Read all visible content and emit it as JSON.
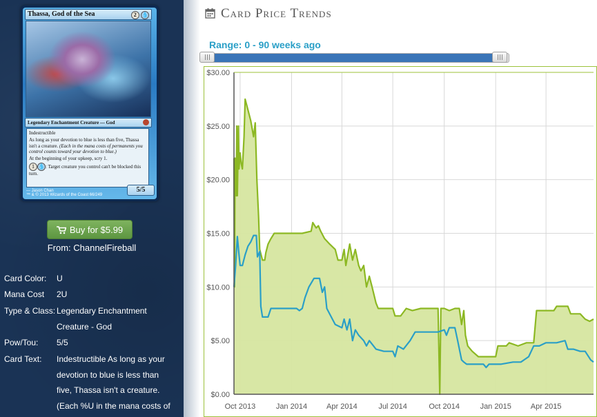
{
  "card": {
    "title": "Thassa, God of the Sea",
    "mana_generic": "2",
    "mana_color": "U",
    "type_line": "Legendary Enchantment Creature — God",
    "rules": [
      "Indestructible",
      "As long as your devotion to blue is less than five, Thassa isn't a creature.",
      "(Each in the mana costs of permanents you control counts toward your devotion to blue.)",
      "At the beginning of your upkeep, scry 1.",
      ": Target creature you control can't be blocked this turn."
    ],
    "activation_cost": "1",
    "power_toughness": "5/5",
    "artist": "Jason Chan",
    "copyright": "™ & © 2013 Wizards of the Coast 66/249"
  },
  "buy": {
    "label": "Buy for $5.99",
    "from": "From: ChannelFireball"
  },
  "attributes": [
    {
      "label": "Card Color:",
      "value": "U"
    },
    {
      "label": "Mana Cost",
      "value": "2U"
    },
    {
      "label": "Type & Class:",
      "value": "Legendary Enchantment Creature - God"
    },
    {
      "label": "Pow/Tou:",
      "value": "5/5"
    },
    {
      "label": "Card Text:",
      "value": "Indestructible As long as your devotion to blue is less than five, Thassa isn't a creature. (Each %U in the mana costs of"
    }
  ],
  "section": {
    "title": "Card Price Trends",
    "icon": "calendar-icon"
  },
  "range": {
    "label": "Range: 0 - 90 weeks ago",
    "min": 0,
    "max": 90
  },
  "colors": {
    "sidebar": "#1a3355",
    "buy_button": "#6aa34c",
    "accent_text": "#2a9fc7",
    "range_fill": "#3a75b8",
    "series_paper": "#8cb823",
    "series_paper_fill": "#d6e6a0",
    "series_foil": "#2a9fc7",
    "grid": "#d8d8d8"
  },
  "chart_data": {
    "type": "line",
    "title": "",
    "xlabel": "",
    "ylabel": "",
    "ylim": [
      0,
      30
    ],
    "xlim": [
      "2013-09-20",
      "2015-06-25"
    ],
    "grid": true,
    "legend": "none",
    "y_ticks": [
      "$0.00",
      "$5.00",
      "$10.00",
      "$15.00",
      "$20.00",
      "$25.00",
      "$30.00"
    ],
    "x_ticks": [
      {
        "label": "Oct 2013",
        "date": "2013-10-01"
      },
      {
        "label": "Jan 2014",
        "date": "2014-01-01"
      },
      {
        "label": "Apr 2014",
        "date": "2014-04-01"
      },
      {
        "label": "Jul 2014",
        "date": "2014-07-01"
      },
      {
        "label": "Oct 2014",
        "date": "2014-10-01"
      },
      {
        "label": "Jan 2015",
        "date": "2015-01-01"
      },
      {
        "label": "Apr 2015",
        "date": "2015-04-01"
      }
    ],
    "series": [
      {
        "color": "#8cb823",
        "fill": "#d6e6a0",
        "points": [
          [
            "2013-09-20",
            22.0
          ],
          [
            "2013-09-21",
            10.0
          ],
          [
            "2013-09-22",
            22.0
          ],
          [
            "2013-09-24",
            18.5
          ],
          [
            "2013-09-25",
            25.0
          ],
          [
            "2013-09-26",
            18.5
          ],
          [
            "2013-09-28",
            25.0
          ],
          [
            "2013-09-29",
            21.0
          ],
          [
            "2013-10-01",
            22.5
          ],
          [
            "2013-10-03",
            21.5
          ],
          [
            "2013-10-05",
            21.0
          ],
          [
            "2013-10-08",
            24.0
          ],
          [
            "2013-10-10",
            27.5
          ],
          [
            "2013-10-15",
            26.5
          ],
          [
            "2013-10-20",
            25.5
          ],
          [
            "2013-10-25",
            24.0
          ],
          [
            "2013-10-28",
            25.3
          ],
          [
            "2013-10-31",
            20.0
          ],
          [
            "2013-11-03",
            16.5
          ],
          [
            "2013-11-05",
            13.5
          ],
          [
            "2013-11-10",
            12.5
          ],
          [
            "2013-11-14",
            12.5
          ],
          [
            "2013-11-16",
            13.2
          ],
          [
            "2013-11-20",
            14.0
          ],
          [
            "2013-11-25",
            14.5
          ],
          [
            "2013-12-01",
            15.0
          ],
          [
            "2013-12-15",
            15.0
          ],
          [
            "2014-01-01",
            15.0
          ],
          [
            "2014-01-20",
            15.0
          ],
          [
            "2014-02-05",
            15.2
          ],
          [
            "2014-02-08",
            16.0
          ],
          [
            "2014-02-14",
            15.5
          ],
          [
            "2014-02-18",
            15.7
          ],
          [
            "2014-02-22",
            15.2
          ],
          [
            "2014-03-01",
            14.5
          ],
          [
            "2014-03-10",
            14.0
          ],
          [
            "2014-03-20",
            13.5
          ],
          [
            "2014-03-25",
            12.5
          ],
          [
            "2014-04-01",
            12.5
          ],
          [
            "2014-04-05",
            13.5
          ],
          [
            "2014-04-08",
            12.0
          ],
          [
            "2014-04-15",
            14.0
          ],
          [
            "2014-04-20",
            12.5
          ],
          [
            "2014-04-25",
            13.5
          ],
          [
            "2014-05-01",
            12.0
          ],
          [
            "2014-05-05",
            11.5
          ],
          [
            "2014-05-10",
            12.0
          ],
          [
            "2014-05-15",
            10.0
          ],
          [
            "2014-05-20",
            11.0
          ],
          [
            "2014-05-25",
            10.0
          ],
          [
            "2014-06-01",
            8.5
          ],
          [
            "2014-06-05",
            8.0
          ],
          [
            "2014-06-20",
            8.0
          ],
          [
            "2014-07-01",
            8.0
          ],
          [
            "2014-07-05",
            7.3
          ],
          [
            "2014-07-15",
            7.3
          ],
          [
            "2014-07-25",
            8.0
          ],
          [
            "2014-08-05",
            7.8
          ],
          [
            "2014-08-20",
            8.0
          ],
          [
            "2014-09-05",
            8.0
          ],
          [
            "2014-09-20",
            8.0
          ],
          [
            "2014-09-23",
            0.0
          ],
          [
            "2014-09-25",
            8.0
          ],
          [
            "2014-10-01",
            8.0
          ],
          [
            "2014-10-10",
            7.8
          ],
          [
            "2014-10-20",
            8.0
          ],
          [
            "2014-10-28",
            8.0
          ],
          [
            "2014-11-01",
            6.5
          ],
          [
            "2014-11-05",
            7.8
          ],
          [
            "2014-11-08",
            5.5
          ],
          [
            "2014-11-12",
            4.5
          ],
          [
            "2014-11-20",
            4.0
          ],
          [
            "2014-12-01",
            3.5
          ],
          [
            "2014-12-15",
            3.5
          ],
          [
            "2015-01-01",
            3.5
          ],
          [
            "2015-01-05",
            4.5
          ],
          [
            "2015-01-20",
            4.5
          ],
          [
            "2015-01-25",
            4.8
          ],
          [
            "2015-02-10",
            4.5
          ],
          [
            "2015-02-25",
            4.8
          ],
          [
            "2015-03-10",
            4.8
          ],
          [
            "2015-03-15",
            7.8
          ],
          [
            "2015-04-01",
            7.8
          ],
          [
            "2015-04-15",
            7.8
          ],
          [
            "2015-04-20",
            8.2
          ],
          [
            "2015-05-10",
            8.2
          ],
          [
            "2015-05-15",
            7.5
          ],
          [
            "2015-06-01",
            7.5
          ],
          [
            "2015-06-10",
            7.0
          ],
          [
            "2015-06-18",
            6.8
          ],
          [
            "2015-06-25",
            7.0
          ]
        ]
      },
      {
        "color": "#2a9fc7",
        "points": [
          [
            "2013-09-20",
            10.0
          ],
          [
            "2013-09-23",
            12.0
          ],
          [
            "2013-09-26",
            14.7
          ],
          [
            "2013-09-29",
            13.0
          ],
          [
            "2013-10-01",
            12.0
          ],
          [
            "2013-10-05",
            12.0
          ],
          [
            "2013-10-10",
            13.0
          ],
          [
            "2013-10-15",
            13.8
          ],
          [
            "2013-10-20",
            14.2
          ],
          [
            "2013-10-25",
            14.8
          ],
          [
            "2013-10-30",
            14.8
          ],
          [
            "2013-11-01",
            12.8
          ],
          [
            "2013-11-05",
            13.3
          ],
          [
            "2013-11-07",
            8.2
          ],
          [
            "2013-11-10",
            7.2
          ],
          [
            "2013-11-20",
            7.2
          ],
          [
            "2013-11-25",
            8.0
          ],
          [
            "2013-12-01",
            8.0
          ],
          [
            "2013-12-15",
            8.0
          ],
          [
            "2014-01-01",
            8.0
          ],
          [
            "2014-01-10",
            8.0
          ],
          [
            "2014-01-15",
            7.8
          ],
          [
            "2014-01-20",
            8.0
          ],
          [
            "2014-01-25",
            9.0
          ],
          [
            "2014-02-01",
            10.0
          ],
          [
            "2014-02-10",
            10.8
          ],
          [
            "2014-02-20",
            10.8
          ],
          [
            "2014-02-25",
            9.5
          ],
          [
            "2014-03-01",
            10.0
          ],
          [
            "2014-03-05",
            8.0
          ],
          [
            "2014-03-15",
            7.0
          ],
          [
            "2014-03-20",
            6.5
          ],
          [
            "2014-04-01",
            6.2
          ],
          [
            "2014-04-05",
            7.0
          ],
          [
            "2014-04-10",
            6.0
          ],
          [
            "2014-04-15",
            7.0
          ],
          [
            "2014-04-20",
            5.0
          ],
          [
            "2014-04-25",
            6.0
          ],
          [
            "2014-05-01",
            5.5
          ],
          [
            "2014-05-10",
            5.0
          ],
          [
            "2014-05-15",
            4.5
          ],
          [
            "2014-05-20",
            5.0
          ],
          [
            "2014-06-01",
            4.2
          ],
          [
            "2014-06-15",
            4.0
          ],
          [
            "2014-07-01",
            4.0
          ],
          [
            "2014-07-05",
            3.5
          ],
          [
            "2014-07-10",
            4.5
          ],
          [
            "2014-07-20",
            4.2
          ],
          [
            "2014-08-01",
            5.0
          ],
          [
            "2014-08-10",
            5.8
          ],
          [
            "2014-09-01",
            5.8
          ],
          [
            "2014-09-20",
            5.8
          ],
          [
            "2014-10-01",
            6.0
          ],
          [
            "2014-10-05",
            5.5
          ],
          [
            "2014-10-10",
            6.2
          ],
          [
            "2014-10-20",
            6.2
          ],
          [
            "2014-10-25",
            5.0
          ],
          [
            "2014-11-01",
            3.2
          ],
          [
            "2014-11-05",
            3.0
          ],
          [
            "2014-11-10",
            2.8
          ],
          [
            "2014-11-20",
            2.8
          ],
          [
            "2014-12-10",
            2.8
          ],
          [
            "2014-12-15",
            2.5
          ],
          [
            "2014-12-20",
            2.8
          ],
          [
            "2015-01-10",
            2.8
          ],
          [
            "2015-02-01",
            3.0
          ],
          [
            "2015-02-15",
            3.0
          ],
          [
            "2015-03-01",
            3.5
          ],
          [
            "2015-03-10",
            4.5
          ],
          [
            "2015-03-20",
            4.5
          ],
          [
            "2015-04-01",
            4.8
          ],
          [
            "2015-04-20",
            4.8
          ],
          [
            "2015-05-05",
            5.0
          ],
          [
            "2015-05-10",
            4.2
          ],
          [
            "2015-05-20",
            4.2
          ],
          [
            "2015-06-01",
            4.0
          ],
          [
            "2015-06-10",
            4.0
          ],
          [
            "2015-06-20",
            3.2
          ],
          [
            "2015-06-25",
            3.0
          ]
        ]
      }
    ]
  }
}
